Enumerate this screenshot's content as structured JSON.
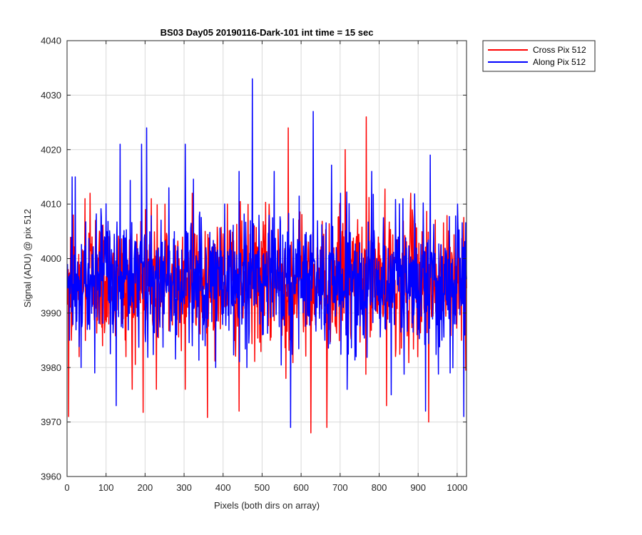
{
  "chart_data": {
    "type": "line",
    "title": "BS03 Day05 20190116-Dark-101 int time = 15 sec",
    "xlabel": "Pixels (both dirs on array)",
    "ylabel": "Signal (ADU) @ pix 512",
    "xlim": [
      0,
      1024
    ],
    "ylim": [
      3960,
      4040
    ],
    "xticks": [
      0,
      100,
      200,
      300,
      400,
      500,
      600,
      700,
      800,
      900,
      1000
    ],
    "yticks": [
      3960,
      3970,
      3980,
      3990,
      4000,
      4010,
      4020,
      4030,
      4040
    ],
    "grid": true,
    "legend_position": "outside-top-right",
    "series": [
      {
        "name": "Cross Pix 512",
        "color": "#ff0000",
        "mean": 3996,
        "noise_std": 6,
        "points": [
          [
            0,
            3998
          ],
          [
            3,
            3971
          ],
          [
            10,
            3985
          ],
          [
            15,
            4008
          ],
          [
            22,
            3990
          ],
          [
            30,
            3982
          ],
          [
            45,
            4011
          ],
          [
            58,
            4012
          ],
          [
            72,
            4007
          ],
          [
            90,
            3984
          ],
          [
            108,
            3993
          ],
          [
            120,
            4004
          ],
          [
            130,
            3996
          ],
          [
            150,
            3982
          ],
          [
            166,
            3976
          ],
          [
            200,
            4009
          ],
          [
            215,
            4011
          ],
          [
            228,
            3976
          ],
          [
            250,
            4010
          ],
          [
            290,
            3998
          ],
          [
            302,
            3976
          ],
          [
            320,
            4012
          ],
          [
            370,
            4002
          ],
          [
            380,
            3993
          ],
          [
            410,
            4010
          ],
          [
            440,
            3972
          ],
          [
            460,
            3988
          ],
          [
            470,
            4000
          ],
          [
            520,
            3985
          ],
          [
            560,
            3978
          ],
          [
            566,
            4024
          ],
          [
            600,
            3994
          ],
          [
            624,
            3968
          ],
          [
            640,
            4002
          ],
          [
            665,
            3969
          ],
          [
            700,
            3995
          ],
          [
            712,
            4020
          ],
          [
            740,
            4003
          ],
          [
            760,
            3993
          ],
          [
            766,
            4026
          ],
          [
            800,
            3999
          ],
          [
            818,
            3973
          ],
          [
            840,
            3996
          ],
          [
            880,
            4012
          ],
          [
            926,
            3970
          ],
          [
            960,
            3993
          ],
          [
            1000,
            4007
          ],
          [
            1010,
            3985
          ],
          [
            1022,
            4002
          ]
        ]
      },
      {
        "name": "Along Pix 512",
        "color": "#0000ff",
        "mean": 3996,
        "noise_std": 6,
        "points": [
          [
            0,
            3999
          ],
          [
            5,
            3985
          ],
          [
            12,
            4015
          ],
          [
            20,
            4015
          ],
          [
            35,
            3980
          ],
          [
            50,
            3993
          ],
          [
            70,
            3979
          ],
          [
            95,
            4004
          ],
          [
            125,
            3973
          ],
          [
            135,
            4021
          ],
          [
            170,
            3990
          ],
          [
            190,
            4021
          ],
          [
            203,
            4024
          ],
          [
            230,
            3987
          ],
          [
            260,
            4013
          ],
          [
            280,
            3986
          ],
          [
            302,
            4021
          ],
          [
            320,
            3984
          ],
          [
            355,
            4002
          ],
          [
            380,
            3980
          ],
          [
            410,
            3994
          ],
          [
            440,
            4016
          ],
          [
            460,
            3980
          ],
          [
            474,
            4033
          ],
          [
            500,
            3986
          ],
          [
            530,
            4016
          ],
          [
            572,
            3969
          ],
          [
            600,
            3996
          ],
          [
            630,
            4027
          ],
          [
            660,
            3985
          ],
          [
            700,
            4012
          ],
          [
            740,
            3982
          ],
          [
            780,
            4016
          ],
          [
            800,
            3989
          ],
          [
            830,
            3975
          ],
          [
            860,
            4011
          ],
          [
            900,
            3987
          ],
          [
            918,
            3972
          ],
          [
            930,
            4019
          ],
          [
            960,
            3985
          ],
          [
            1000,
            4010
          ],
          [
            1016,
            3971
          ],
          [
            1022,
            3998
          ]
        ]
      }
    ]
  }
}
